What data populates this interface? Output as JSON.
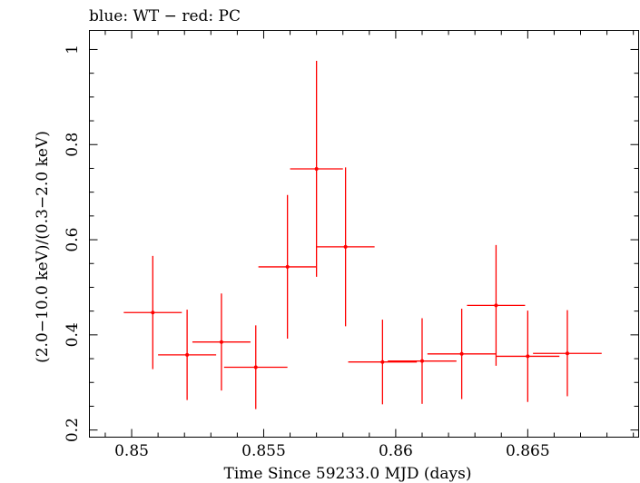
{
  "chart_data": {
    "type": "scatter",
    "title": "blue: WT − red: PC",
    "xlabel": "Time Since 59233.0 MJD (days)",
    "ylabel": "(2.0−10.0 keV)/(0.3−2.0 keV)",
    "xlim": [
      0.8484,
      0.8692
    ],
    "ylim": [
      0.185,
      1.04
    ],
    "x_ticks": [
      0.85,
      0.855,
      0.86,
      0.865
    ],
    "x_tick_labels": [
      "0.85",
      "0.855",
      "0.86",
      "0.865"
    ],
    "y_ticks": [
      0.2,
      0.4,
      0.6,
      0.8,
      1.0
    ],
    "y_tick_labels": [
      "0.2",
      "0.4",
      "0.6",
      "0.8",
      "1"
    ],
    "grid": false,
    "series": [
      {
        "color": "#ff0000",
        "points": [
          {
            "x": 0.8508,
            "xerr": 0.0011,
            "y": 0.447,
            "ylo": 0.328,
            "yhi": 0.566
          },
          {
            "x": 0.8521,
            "xerr": 0.0011,
            "y": 0.358,
            "ylo": 0.263,
            "yhi": 0.453
          },
          {
            "x": 0.8534,
            "xerr": 0.0011,
            "y": 0.385,
            "ylo": 0.283,
            "yhi": 0.487
          },
          {
            "x": 0.8547,
            "xerr": 0.0012,
            "y": 0.332,
            "ylo": 0.244,
            "yhi": 0.42
          },
          {
            "x": 0.8559,
            "xerr": 0.0011,
            "y": 0.543,
            "ylo": 0.392,
            "yhi": 0.694
          },
          {
            "x": 0.857,
            "xerr": 0.001,
            "y": 0.749,
            "ylo": 0.522,
            "yhi": 0.976
          },
          {
            "x": 0.8581,
            "xerr": 0.0011,
            "y": 0.585,
            "ylo": 0.418,
            "yhi": 0.752
          },
          {
            "x": 0.8595,
            "xerr": 0.0013,
            "y": 0.343,
            "ylo": 0.254,
            "yhi": 0.432
          },
          {
            "x": 0.861,
            "xerr": 0.0013,
            "y": 0.345,
            "ylo": 0.255,
            "yhi": 0.435
          },
          {
            "x": 0.8625,
            "xerr": 0.0013,
            "y": 0.36,
            "ylo": 0.265,
            "yhi": 0.455
          },
          {
            "x": 0.8638,
            "xerr": 0.0011,
            "y": 0.462,
            "ylo": 0.335,
            "yhi": 0.589
          },
          {
            "x": 0.865,
            "xerr": 0.0012,
            "y": 0.355,
            "ylo": 0.259,
            "yhi": 0.451
          },
          {
            "x": 0.8665,
            "xerr": 0.0013,
            "y": 0.361,
            "ylo": 0.271,
            "yhi": 0.452
          }
        ]
      }
    ]
  }
}
